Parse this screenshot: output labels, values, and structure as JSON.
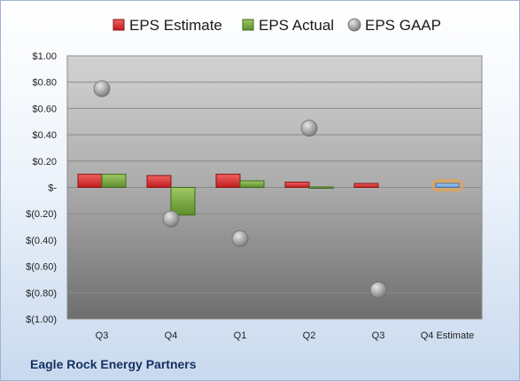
{
  "chart_data": {
    "type": "bar",
    "categories": [
      "Q3",
      "Q4",
      "Q1",
      "Q2",
      "Q3",
      "Q4 Estimate"
    ],
    "series": [
      {
        "name": "EPS Estimate",
        "kind": "bar",
        "color": "#d42a2a",
        "values": [
          0.1,
          0.09,
          0.1,
          0.04,
          0.03,
          null
        ]
      },
      {
        "name": "EPS Actual",
        "kind": "bar",
        "color": "#72a33a",
        "values": [
          0.1,
          -0.21,
          0.05,
          -0.01,
          null,
          null
        ]
      },
      {
        "name": "EPS GAAP",
        "kind": "scatter",
        "color": "#a8a8a8",
        "values": [
          0.75,
          -0.24,
          -0.39,
          0.45,
          -0.78,
          null
        ]
      }
    ],
    "forecast": {
      "category": "Q4 Estimate",
      "value": 0.03,
      "color": "#7fb2e5",
      "glow": "#f2a33a"
    },
    "yticks": [
      "$1.00",
      "$0.80",
      "$0.60",
      "$0.40",
      "$0.20",
      "$-",
      "$(0.20)",
      "$(0.40)",
      "$(0.60)",
      "$(0.80)",
      "$(1.00)"
    ],
    "ylim": [
      -1.0,
      1.0
    ],
    "grid": true,
    "legend": "top"
  },
  "footer": {
    "company": "Eagle Rock Energy Partners"
  }
}
